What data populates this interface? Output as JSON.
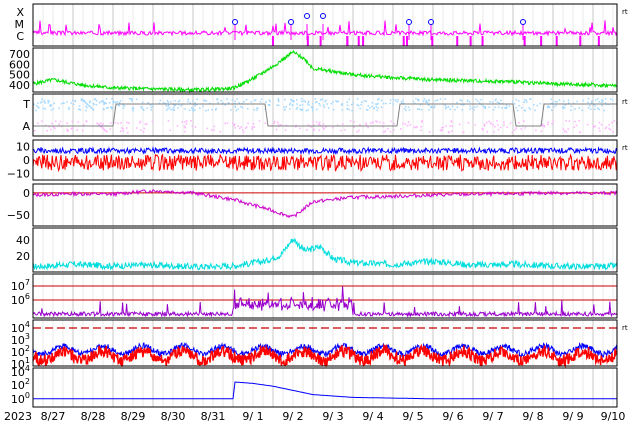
{
  "figure": {
    "start_year_label": "2023",
    "date_labels": [
      "8/27",
      "8/28",
      "8/29",
      "8/30",
      "8/31",
      "9/ 1",
      "9/ 2",
      "9/ 3",
      "9/ 4",
      "9/ 5",
      "9/ 6",
      "9/ 7",
      "9/ 8",
      "9/ 9",
      "9/10"
    ],
    "rt_marker": "rt"
  },
  "chart_data": [
    {
      "type": "line",
      "panel": "x-ray flare class",
      "tick_labels": [
        "X",
        "M",
        "C"
      ],
      "color": "#ff00ff",
      "series": [
        {
          "values": "baseline near C level with small C-class spikes; flare markers (circles) near 9/1, 9/2, 9/2, 9/3, 9/5, 9/5, 9/7"
        }
      ],
      "marker_days": [
        5.05,
        6.45,
        6.85,
        7.25,
        9.4,
        9.95,
        12.25
      ],
      "right_marker": "rt"
    },
    {
      "type": "line",
      "panel": "solar wind speed",
      "tick_labels": [
        "700",
        "600",
        "500",
        "400"
      ],
      "ylim": [
        330,
        760
      ],
      "color": "#00dd00",
      "series": [
        {
          "x_days": [
            0,
            0.5,
            1.2,
            2,
            3,
            4,
            5,
            5.5,
            6,
            6.5,
            6.8,
            7,
            7.5,
            8,
            9,
            10,
            11,
            12,
            13,
            14,
            14.6
          ],
          "values": [
            410,
            450,
            400,
            370,
            360,
            350,
            365,
            460,
            580,
            720,
            650,
            560,
            530,
            500,
            470,
            450,
            440,
            430,
            410,
            400,
            390
          ]
        }
      ]
    },
    {
      "type": "line",
      "panel": "IMF sector polarity",
      "tick_labels": [
        "T",
        "A"
      ],
      "series": [
        {
          "color": "#a0d8ff",
          "values": "scatter near T (toward) level"
        },
        {
          "color": "#ffb0ff",
          "values": "scatter near A (away) level"
        },
        {
          "color": "#808080",
          "values": "sector polarity step line"
        }
      ],
      "right_marker": "rt"
    },
    {
      "type": "line",
      "panel": "IMF Bz / Bt",
      "tick_labels": [
        "10",
        "0",
        "−10"
      ],
      "ylim": [
        -15,
        15
      ],
      "series": [
        {
          "color": "#0000ff",
          "values": "Bt around +4 to +8 nT"
        },
        {
          "color": "#ff0000",
          "values": "Bz fluctuating between -10 and +5 nT"
        }
      ],
      "right_marker": "rt"
    },
    {
      "type": "line",
      "panel": "Dst index",
      "tick_labels": [
        "0",
        "−50"
      ],
      "ylim": [
        -75,
        20
      ],
      "color": "#cc00cc",
      "series": [
        {
          "x_days": [
            0,
            1,
            2,
            3,
            4,
            5,
            5.8,
            6.5,
            7,
            8,
            9,
            10,
            11,
            12,
            13,
            14,
            14.6
          ],
          "values": [
            -5,
            -2,
            -3,
            5,
            0,
            -15,
            -35,
            -55,
            -20,
            -10,
            -8,
            -5,
            -3,
            -2,
            0,
            -1,
            0
          ]
        }
      ]
    },
    {
      "type": "line",
      "panel": "Kp / AE index",
      "tick_labels": [
        "40",
        "20"
      ],
      "ylim": [
        0,
        55
      ],
      "color": "#00dddd",
      "series": [
        {
          "x_days": [
            0,
            1,
            2,
            3,
            4,
            5,
            5.8,
            6.2,
            6.5,
            6.8,
            7.2,
            7.5,
            8,
            9,
            10,
            11,
            12,
            13,
            14,
            14.6
          ],
          "values": [
            5,
            8,
            6,
            7,
            5,
            6,
            12,
            20,
            40,
            25,
            30,
            15,
            10,
            8,
            12,
            7,
            8,
            6,
            5,
            6
          ]
        }
      ]
    },
    {
      "type": "line",
      "panel": "electron flux",
      "tick_labels": [
        "10^7",
        "10^6"
      ],
      "series": [
        {
          "color": "#9900cc",
          "values": "bursts around 9/1-9/3"
        }
      ]
    },
    {
      "type": "line",
      "panel": "proton flux",
      "tick_labels": [
        "10^4",
        "10^3",
        "10^2",
        "10^1"
      ],
      "series": [
        {
          "color": "#0000ff",
          "values": "diurnal variation 10^1.5 to 10^2.5"
        },
        {
          "color": "#ff0000",
          "values": "diurnal variation 10^1 to 10^2.5"
        }
      ],
      "threshold_line": "10^3.7",
      "right_marker": "rt"
    },
    {
      "type": "line",
      "panel": "high-energy proton flux",
      "tick_labels": [
        "10^4",
        "10^2",
        "10^0"
      ],
      "color": "#0000ff",
      "series": [
        {
          "x_days": [
            0,
            5,
            5.05,
            5.5,
            6,
            6.5,
            7,
            8,
            9,
            10,
            14.6
          ],
          "values": [
            0.3,
            0.3,
            1.5,
            1.4,
            1.2,
            0.9,
            0.6,
            0.4,
            0.35,
            0.3,
            0.3
          ]
        }
      ]
    }
  ]
}
